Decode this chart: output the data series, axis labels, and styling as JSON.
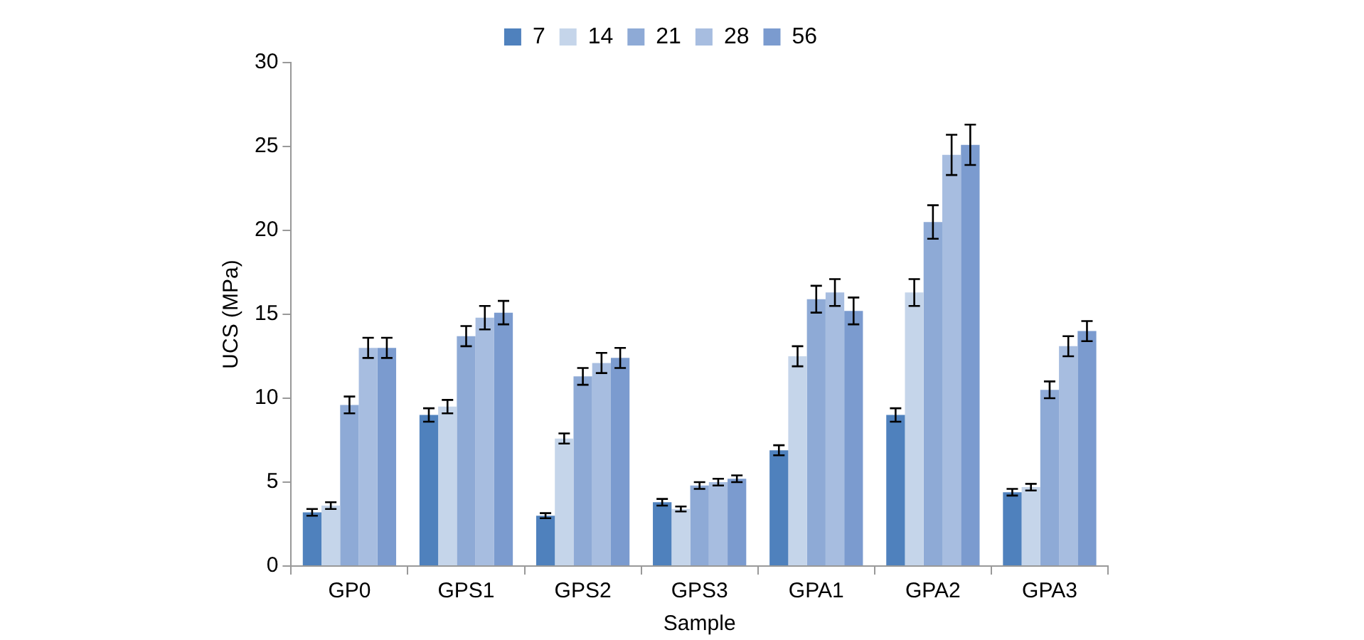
{
  "chart_data": {
    "type": "bar",
    "xlabel": "Sample",
    "ylabel": "UCS (MPa)",
    "categories": [
      "GP0",
      "GPS1",
      "GPS2",
      "GPS3",
      "GPA1",
      "GPA2",
      "GPA3"
    ],
    "series": [
      {
        "name": "7",
        "color": "#4f81bd",
        "values": [
          3.2,
          9.0,
          3.0,
          3.8,
          6.9,
          9.0,
          4.4
        ],
        "errors": [
          0.2,
          0.4,
          0.15,
          0.2,
          0.3,
          0.4,
          0.2
        ]
      },
      {
        "name": "14",
        "color": "#c5d5ea",
        "values": [
          3.6,
          9.5,
          7.6,
          3.4,
          12.5,
          16.3,
          4.7
        ],
        "errors": [
          0.2,
          0.4,
          0.3,
          0.15,
          0.6,
          0.8,
          0.2
        ]
      },
      {
        "name": "21",
        "color": "#8eaad6",
        "values": [
          9.6,
          13.7,
          11.3,
          4.8,
          15.9,
          20.5,
          10.5
        ],
        "errors": [
          0.5,
          0.6,
          0.5,
          0.2,
          0.8,
          1.0,
          0.5
        ]
      },
      {
        "name": "28",
        "color": "#a7bde0",
        "values": [
          13.0,
          14.8,
          12.1,
          5.0,
          16.3,
          24.5,
          13.1
        ],
        "errors": [
          0.6,
          0.7,
          0.6,
          0.2,
          0.8,
          1.2,
          0.6
        ]
      },
      {
        "name": "56",
        "color": "#7b9bcf",
        "values": [
          13.0,
          15.1,
          12.4,
          5.2,
          15.2,
          25.1,
          14.0
        ],
        "errors": [
          0.6,
          0.7,
          0.6,
          0.2,
          0.8,
          1.2,
          0.6
        ]
      }
    ],
    "ylim": [
      0,
      30
    ],
    "yticks": [
      0,
      5,
      10,
      15,
      20,
      25,
      30
    ],
    "grid": false,
    "legend": "top"
  }
}
